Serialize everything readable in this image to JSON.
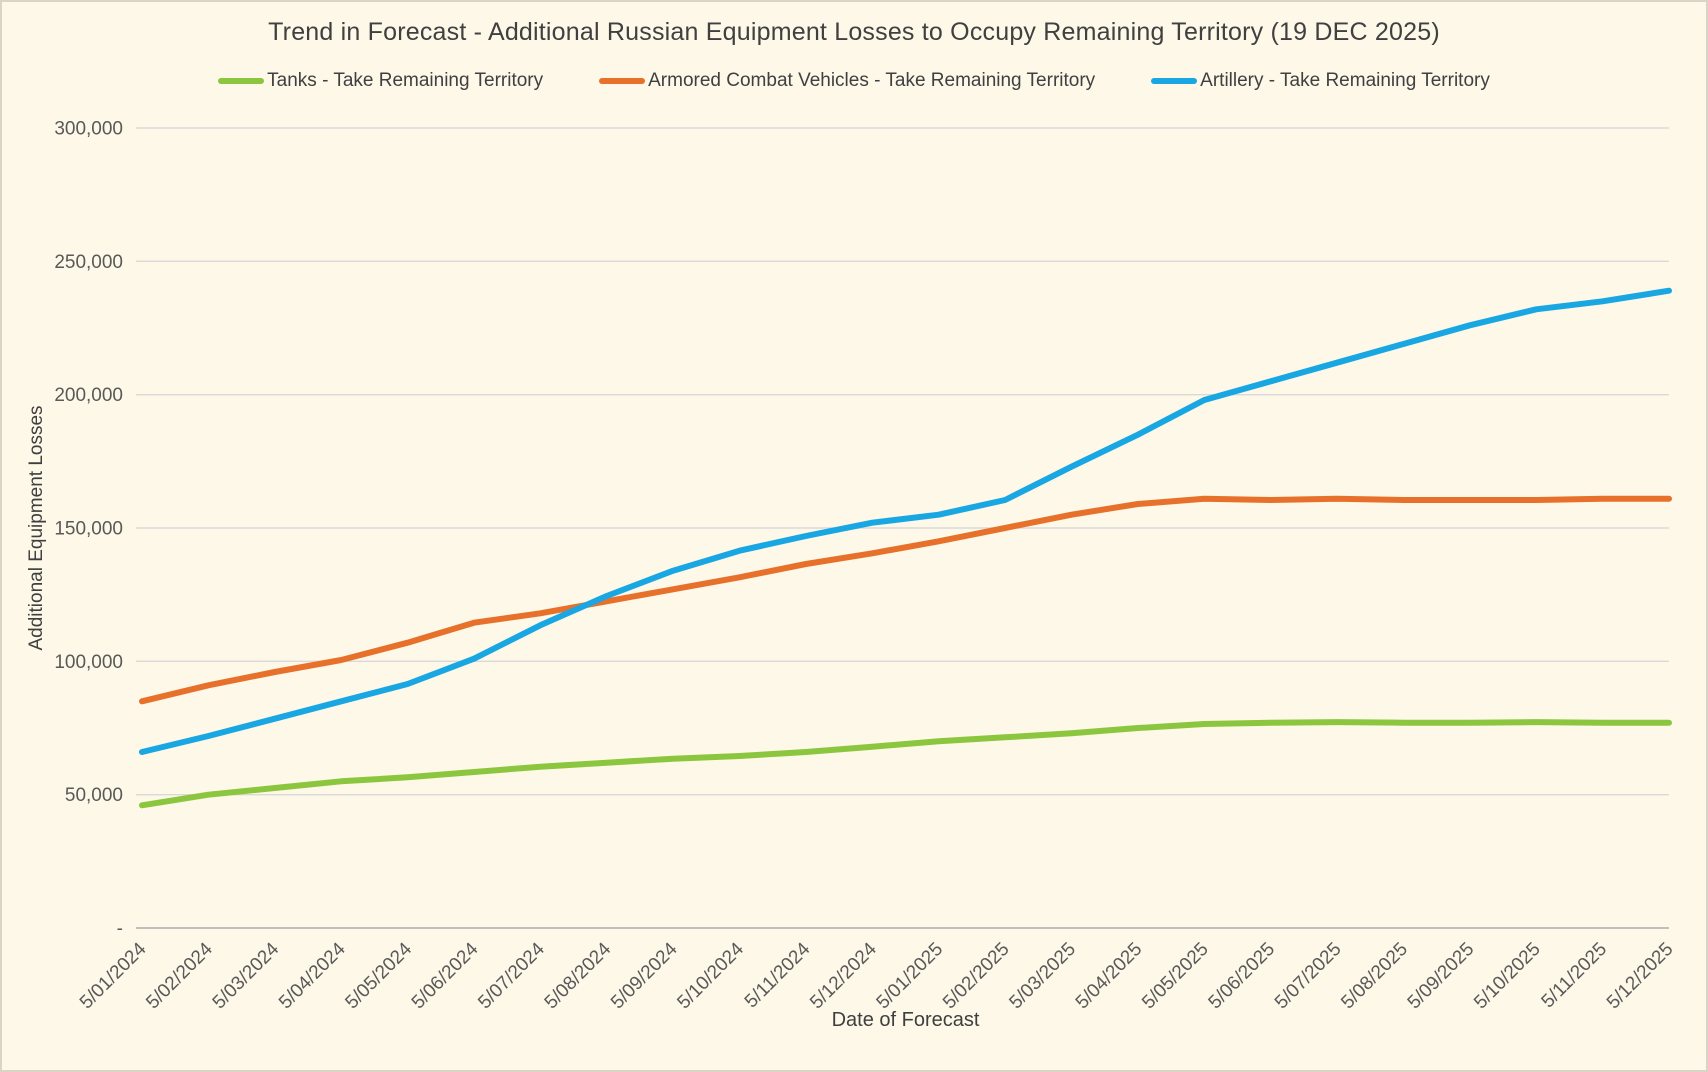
{
  "window": {
    "background": "#FDF8E8",
    "border_color": "#D8D5C6"
  },
  "chart_data": {
    "type": "line",
    "title": "Trend in Forecast - Additional Russian Equipment Losses to Occupy Remaining Territory (19 DEC 2025)",
    "x_axis_label": "Date of Forecast",
    "y_axis_label": "Additional Equipment Losses",
    "y_min": 0,
    "y_max": 300000,
    "y_tick_step": 50000,
    "y_zero_label": "-",
    "grid": true,
    "legend_position": "top",
    "categories": [
      "5/01/2024",
      "5/02/2024",
      "5/03/2024",
      "5/04/2024",
      "5/05/2024",
      "5/06/2024",
      "5/07/2024",
      "5/08/2024",
      "5/09/2024",
      "5/10/2024",
      "5/11/2024",
      "5/12/2024",
      "5/01/2025",
      "5/02/2025",
      "5/03/2025",
      "5/04/2025",
      "5/05/2025",
      "5/06/2025",
      "5/07/2025",
      "5/08/2025",
      "5/09/2025",
      "5/10/2025",
      "5/11/2025",
      "5/12/2025"
    ],
    "series": [
      {
        "name": "Tanks - Take Remaining Territory",
        "color": "#8CC63F",
        "values": [
          46000,
          50000,
          52500,
          55000,
          56500,
          58500,
          60500,
          62000,
          63500,
          64500,
          66000,
          68000,
          70000,
          71500,
          73000,
          75000,
          76500,
          77000,
          77200,
          77000,
          77000,
          77200,
          77000,
          77000
        ]
      },
      {
        "name": "Armored Combat Vehicles - Take Remaining Territory",
        "color": "#E7712B",
        "values": [
          85000,
          91000,
          96000,
          100500,
          107000,
          114500,
          118000,
          122500,
          127000,
          131500,
          136500,
          140500,
          145000,
          150000,
          155000,
          159000,
          161000,
          160500,
          161000,
          160500,
          160500,
          160500,
          161000,
          161000
        ]
      },
      {
        "name": "Artillery - Take Remaining Territory",
        "color": "#19A7E4",
        "values": [
          66000,
          72000,
          78500,
          85000,
          91500,
          101000,
          113500,
          124500,
          134000,
          141500,
          147000,
          152000,
          155000,
          160500,
          173000,
          185000,
          198000,
          205000,
          212000,
          219000,
          226000,
          232000,
          235000,
          239000
        ]
      }
    ],
    "colors": {
      "gridline": "#D9D9D9",
      "axis_line": "#BFBFBF",
      "tick_label": "#595959",
      "axis_title": "#3F3F3F",
      "title": "#404040"
    }
  }
}
